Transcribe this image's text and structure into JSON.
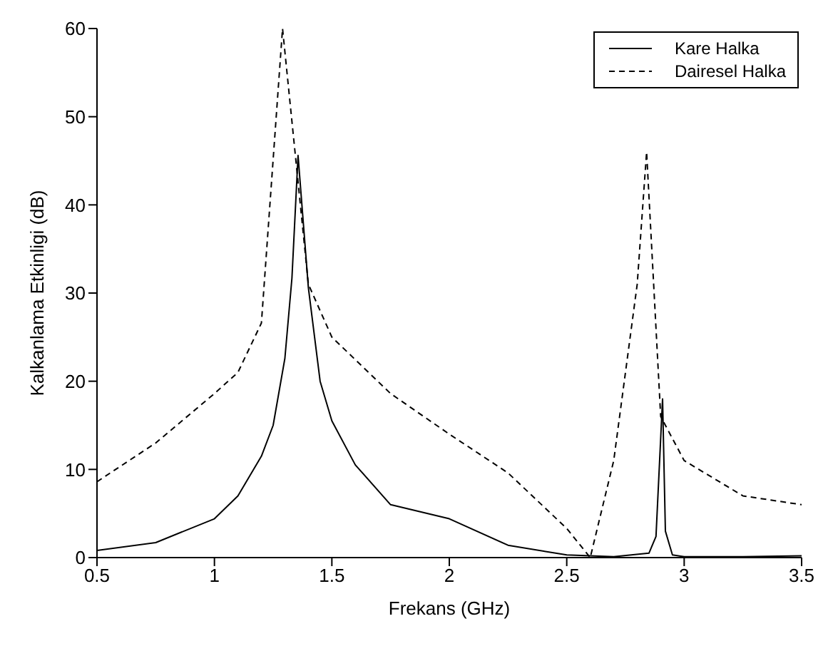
{
  "chart_data": {
    "type": "line",
    "xlabel": "Frekans (GHz)",
    "ylabel": "Kalkanlama Etkinligi (dB)",
    "xlim": [
      0.5,
      3.5
    ],
    "xticks": [
      0.5,
      1,
      1.5,
      2,
      2.5,
      3,
      3.5
    ],
    "ylim": [
      0,
      60
    ],
    "yticks": [
      0,
      10,
      20,
      30,
      40,
      50,
      60
    ],
    "grid": false,
    "legend": "top right",
    "marker": "none",
    "series": [
      {
        "name": "Kare Halka",
        "color": "#000000",
        "line_style": "solid",
        "x": [
          0.5,
          0.75,
          1.0,
          1.1,
          1.2,
          1.25,
          1.3,
          1.33,
          1.356,
          1.4,
          1.45,
          1.5,
          1.6,
          1.75,
          2.0,
          2.25,
          2.5,
          2.7,
          2.85,
          2.88,
          2.908,
          2.92,
          2.95,
          3.0,
          3.25,
          3.5
        ],
        "values": [
          0.8,
          1.7,
          4.4,
          7,
          11.5,
          15,
          22.6,
          31.7,
          45.6,
          30.6,
          20,
          15.5,
          10.5,
          6,
          4.4,
          1.4,
          0.3,
          0.1,
          0.5,
          2.4,
          18,
          3,
          0.3,
          0.1,
          0.1,
          0.2
        ]
      },
      {
        "name": "Dairesel Halka",
        "color": "#000000",
        "line_style": "dashed",
        "x": [
          0.5,
          0.75,
          1.0,
          1.1,
          1.2,
          1.29,
          1.4,
          1.5,
          1.75,
          2.0,
          2.25,
          2.5,
          2.6,
          2.7,
          2.8,
          2.84,
          2.9,
          3.0,
          3.25,
          3.5
        ],
        "values": [
          8.6,
          13,
          18.6,
          21,
          26.6,
          60,
          31,
          25,
          18.6,
          14,
          9.6,
          3.3,
          0,
          11,
          31,
          46,
          16,
          11,
          7,
          6
        ]
      }
    ]
  }
}
